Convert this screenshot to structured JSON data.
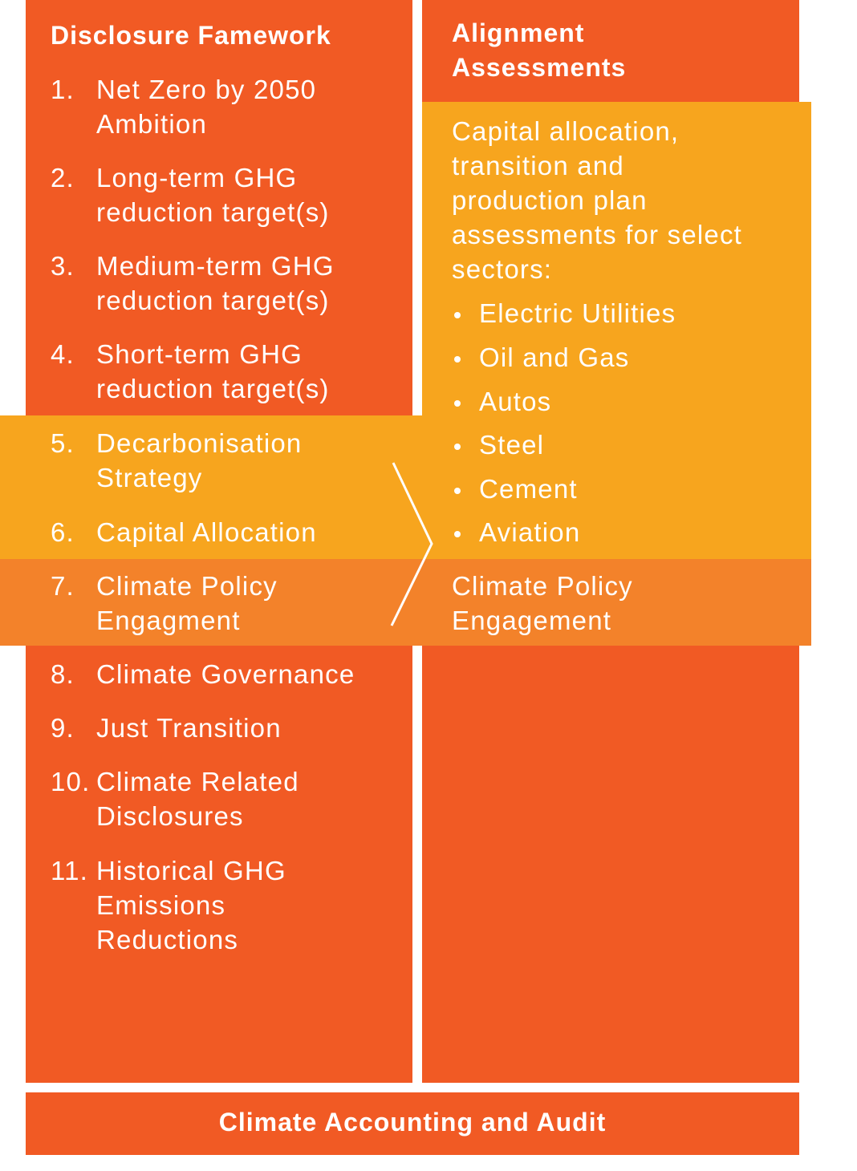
{
  "left_column": {
    "title": "Disclosure Famework",
    "items": [
      {
        "number": "1.",
        "text": "Net Zero by 2050\nAmbition"
      },
      {
        "number": "2.",
        "text": "Long-term GHG\nreduction target(s)"
      },
      {
        "number": "3.",
        "text": "Medium-term GHG\nreduction target(s)"
      },
      {
        "number": "4.",
        "text": "Short-term GHG\nreduction target(s)"
      },
      {
        "number": "5.",
        "text": "Decarbonisation\nStrategy"
      },
      {
        "number": "6.",
        "text": "Capital Allocation"
      },
      {
        "number": "7.",
        "text": "Climate Policy\nEngagment"
      },
      {
        "number": "8.",
        "text": "Climate Governance"
      },
      {
        "number": "9.",
        "text": "Just Transition"
      },
      {
        "number": "10.",
        "text": "Climate Related\nDisclosures"
      },
      {
        "number": "11.",
        "text": "Historical GHG\nEmissions\nReductions"
      }
    ]
  },
  "right_column": {
    "title": "Alignment\nAssessments",
    "description": "Capital allocation,\ntransition and\nproduction plan\nassessments for select\nsectors:",
    "sectors": [
      "Electric Utilities",
      "Oil and Gas",
      "Autos",
      "Steel",
      "Cement",
      "Aviation"
    ],
    "footer": "Climate Policy\nEngagement"
  },
  "bottom_bar": "Climate Accounting and Audit"
}
